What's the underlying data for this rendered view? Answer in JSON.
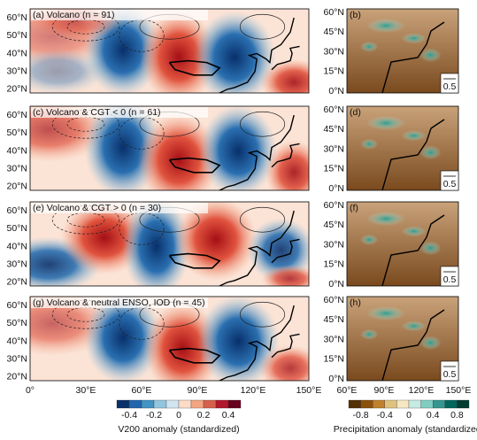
{
  "panels": [
    {
      "label": "(a) Volcano (n = 91)",
      "precip_label": "(b)"
    },
    {
      "label": "(c) Volcano & CGT < 0 (n = 61)",
      "precip_label": "(d)"
    },
    {
      "label": "(e) Volcano & CGT > 0 (n = 30)",
      "precip_label": "(f)"
    },
    {
      "label": "(g) Volcano & neutral ENSO, IOD (n = 45)",
      "precip_label": "(h)"
    }
  ],
  "lat_labels": [
    "60°N",
    "50°N",
    "40°N",
    "30°N",
    "20°N"
  ],
  "right_lat_labels": [
    "60°N",
    "45°N",
    "30°N",
    "15°N",
    "0°N"
  ],
  "lon_labels": [
    "0°",
    "30°E",
    "60°E",
    "90°E",
    "120°E",
    "150°E"
  ],
  "right_lon_labels": [
    "60°E",
    "90°E",
    "120°E",
    "150°E"
  ],
  "vector_scale": "0.5",
  "colorbars": {
    "v200": {
      "ticks": [
        "-0.4",
        "-0.2",
        "0",
        "0.2",
        "0.4"
      ],
      "title": "V200 anomaly (standardized)"
    },
    "precip": {
      "ticks": [
        "-0.8",
        "-0.4",
        "0",
        "0.4",
        "0.8"
      ],
      "title": "Precipitation anomaly (standardized)"
    }
  }
}
